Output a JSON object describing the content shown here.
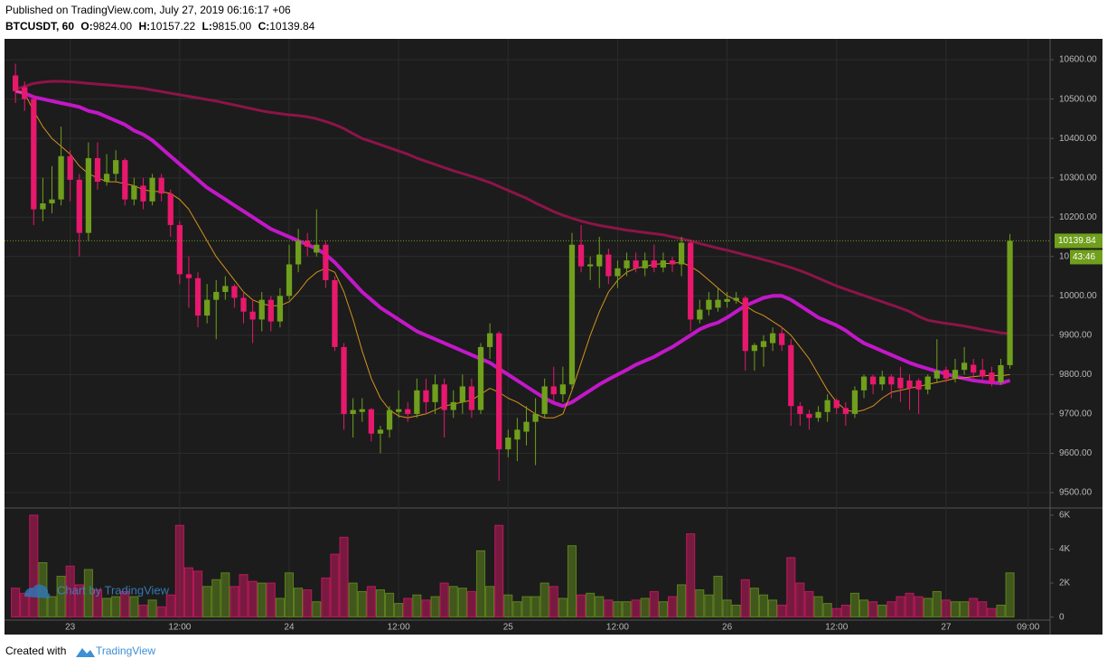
{
  "chart_data": {
    "type": "candlestick",
    "header": {
      "published": "Published on TradingView.com, July 27, 2019 06:16:17 +06",
      "symbol": "BTCUSDT, 60",
      "ohlc": [
        {
          "label": "O:",
          "value": "9824.00"
        },
        {
          "label": "H:",
          "value": "10157.22"
        },
        {
          "label": "L:",
          "value": "9815.00"
        },
        {
          "label": "C:",
          "value": "10139.84"
        }
      ]
    },
    "last_price_label": "10139.84",
    "countdown": "43:46",
    "watermark": "Chart by TradingView",
    "footer": {
      "created": "Created with",
      "brand": "TradingView"
    },
    "up_color": "#6f9f1c",
    "down_color": "#e8186d",
    "open": [
      10560,
      10530,
      10500,
      10220,
      10235,
      10245,
      10355,
      10295,
      10160,
      10350,
      10290,
      10310,
      10345,
      10245,
      10280,
      10240,
      10300,
      10260,
      10180,
      10055,
      10045,
      9950,
      9990,
      10010,
      10025,
      9995,
      9960,
      9940,
      9990,
      9935,
      10000,
      10080,
      10140,
      10110,
      10130,
      10040,
      9870,
      9700,
      9705,
      9712,
      9650,
      9660,
      9705,
      9712,
      9700,
      9760,
      9730,
      9775,
      9710,
      9730,
      9770,
      9710,
      9870,
      9905,
      9610,
      9635,
      9655,
      9680,
      9700,
      9770,
      9750,
      9775,
      10130,
      10075,
      10075,
      10105,
      10050,
      10070,
      10090,
      10070,
      10090,
      10072,
      10090,
      10080,
      10135,
      9940,
      9965,
      9970,
      9985,
      9988,
      9995,
      9860,
      9870,
      9880,
      9905,
      9875,
      9720,
      9700,
      9690,
      9705,
      9735,
      9715,
      9700,
      9760,
      9795,
      9775,
      9795,
      9792,
      9785,
      9785,
      9762,
      9790,
      9812,
      9790,
      9812,
      9825,
      9812,
      9805,
      9780,
      9824
    ],
    "high": [
      10590,
      10545,
      10510,
      10300,
      10330,
      10430,
      10370,
      10310,
      10390,
      10390,
      10360,
      10370,
      10350,
      10300,
      10300,
      10310,
      10310,
      10270,
      10190,
      10100,
      10060,
      10030,
      10040,
      10050,
      10030,
      10010,
      9990,
      10010,
      10000,
      10020,
      10130,
      10170,
      10160,
      10220,
      10140,
      10050,
      9880,
      9740,
      9740,
      9715,
      9670,
      9720,
      9760,
      9730,
      9790,
      9790,
      9800,
      9790,
      9760,
      9800,
      9790,
      9880,
      9930,
      9910,
      9660,
      9690,
      9720,
      9740,
      9790,
      9820,
      9820,
      10160,
      10180,
      10100,
      10150,
      10120,
      10090,
      10110,
      10110,
      10110,
      10130,
      10110,
      10100,
      10150,
      10140,
      9990,
      10010,
      10020,
      10010,
      10010,
      10000,
      9880,
      9900,
      9920,
      9920,
      9890,
      9730,
      9710,
      9720,
      9750,
      9740,
      9730,
      9770,
      9800,
      9800,
      9810,
      9800,
      9820,
      9800,
      9790,
      9800,
      9890,
      9820,
      9840,
      9870,
      9840,
      9840,
      9820,
      9840,
      10157.22
    ],
    "low": [
      10490,
      10470,
      10180,
      10190,
      10210,
      10230,
      10240,
      10100,
      10140,
      10270,
      10280,
      10290,
      10230,
      10230,
      10220,
      10230,
      10240,
      10150,
      10030,
      9970,
      9920,
      9930,
      9890,
      9990,
      9970,
      9930,
      9880,
      9910,
      9910,
      9920,
      9990,
      10060,
      10100,
      10100,
      10020,
      9860,
      9660,
      9640,
      9680,
      9630,
      9600,
      9640,
      9690,
      9680,
      9690,
      9700,
      9700,
      9640,
      9690,
      9700,
      9690,
      9700,
      9840,
      9530,
      9590,
      9580,
      9620,
      9570,
      9690,
      9730,
      9730,
      9760,
      10060,
      10040,
      10020,
      10030,
      10020,
      10050,
      10060,
      10050,
      10060,
      10060,
      10060,
      10050,
      9910,
      9930,
      9950,
      9960,
      9970,
      9980,
      9810,
      9810,
      9820,
      9860,
      9860,
      9670,
      9670,
      9660,
      9680,
      9680,
      9700,
      9670,
      9690,
      9740,
      9750,
      9760,
      9740,
      9730,
      9710,
      9700,
      9750,
      9780,
      9780,
      9780,
      9800,
      9790,
      9780,
      9770,
      9775,
      9815
    ],
    "close": [
      10520,
      10500,
      10220,
      10235,
      10245,
      10355,
      10295,
      10160,
      10350,
      10290,
      10310,
      10345,
      10245,
      10280,
      10240,
      10300,
      10260,
      10180,
      10055,
      10045,
      9950,
      9990,
      10010,
      10025,
      9995,
      9960,
      9940,
      9990,
      9935,
      10000,
      10080,
      10140,
      10125,
      10130,
      10040,
      9870,
      9700,
      9710,
      9712,
      9650,
      9660,
      9710,
      9712,
      9700,
      9760,
      9730,
      9775,
      9710,
      9730,
      9770,
      9710,
      9870,
      9905,
      9610,
      9640,
      9660,
      9680,
      9700,
      9770,
      9750,
      9775,
      10130,
      10075,
      10080,
      10105,
      10050,
      10070,
      10090,
      10070,
      10090,
      10072,
      10090,
      10080,
      10135,
      9940,
      9965,
      9990,
      9990,
      9992,
      9995,
      9860,
      9875,
      9885,
      9905,
      9875,
      9720,
      9700,
      9690,
      9705,
      9735,
      9715,
      9700,
      9760,
      9795,
      9775,
      9795,
      9775,
      9765,
      9765,
      9762,
      9795,
      9810,
      9790,
      9812,
      9830,
      9805,
      9795,
      9780,
      9824,
      10139.84
    ],
    "volume": [
      1700,
      1400,
      6000,
      3200,
      1200,
      2400,
      3000,
      1900,
      2800,
      1600,
      1100,
      1200,
      1500,
      1200,
      700,
      1000,
      600,
      1300,
      5400,
      2900,
      2700,
      1800,
      2200,
      2600,
      1800,
      2500,
      2100,
      2000,
      2000,
      1100,
      2600,
      1700,
      1600,
      900,
      2300,
      3700,
      4700,
      2000,
      1500,
      1800,
      1600,
      1400,
      800,
      1100,
      1300,
      1000,
      1200,
      2000,
      1800,
      1700,
      1500,
      3900,
      1800,
      5400,
      1300,
      900,
      1200,
      1200,
      2000,
      1800,
      1100,
      4200,
      1300,
      1400,
      1200,
      1000,
      900,
      900,
      1000,
      1100,
      1500,
      900,
      1200,
      1900,
      4900,
      1600,
      1300,
      2400,
      1000,
      700,
      2200,
      1700,
      1300,
      1000,
      700,
      3500,
      2000,
      1500,
      1200,
      800,
      500,
      700,
      1400,
      1000,
      900,
      700,
      900,
      1200,
      1400,
      1200,
      1100,
      1500,
      1000,
      900,
      900,
      1100,
      900,
      500,
      700,
      2600
    ],
    "lines": [
      {
        "color": "#8c1449",
        "width": 3,
        "values": [
          10525,
          10532,
          10540,
          10543,
          10545,
          10545,
          10544,
          10542,
          10540,
          10538,
          10536,
          10534,
          10532,
          10530,
          10527,
          10523,
          10519,
          10515,
          10511,
          10507,
          10503,
          10499,
          10495,
          10490,
          10485,
          10480,
          10475,
          10470,
          10466,
          10463,
          10460,
          10458,
          10455,
          10450,
          10443,
          10435,
          10425,
          10412,
          10400,
          10392,
          10384,
          10376,
          10368,
          10360,
          10350,
          10342,
          10334,
          10326,
          10318,
          10311,
          10304,
          10296,
          10288,
          10278,
          10268,
          10258,
          10248,
          10236,
          10225,
          10214,
          10205,
          10197,
          10190,
          10184,
          10179,
          10175,
          10171,
          10167,
          10164,
          10161,
          10158,
          10155,
          10150,
          10145,
          10140,
          10133,
          10127,
          10121,
          10116,
          10110,
          10104,
          10098,
          10092,
          10086,
          10079,
          10072,
          10064,
          10055,
          10045,
          10035,
          10025,
          10017,
          10009,
          10001,
          9993,
          9985,
          9977,
          9969,
          9960,
          9948,
          9938,
          9934,
          9930,
          9927,
          9923,
          9919,
          9914,
          9910,
          9906,
          9904
        ]
      },
      {
        "color": "#c218c8",
        "width": 4,
        "values": [
          10520,
          10515,
          10505,
          10500,
          10495,
          10490,
          10485,
          10480,
          10470,
          10465,
          10455,
          10445,
          10435,
          10420,
          10410,
          10395,
          10375,
          10355,
          10335,
          10315,
          10295,
          10275,
          10260,
          10245,
          10230,
          10215,
          10200,
          10185,
          10170,
          10160,
          10150,
          10140,
          10130,
          10120,
          10105,
          10085,
          10060,
          10035,
          10010,
          9990,
          9970,
          9955,
          9940,
          9925,
          9910,
          9900,
          9890,
          9880,
          9870,
          9860,
          9850,
          9840,
          9830,
          9815,
          9800,
          9785,
          9770,
          9755,
          9740,
          9728,
          9720,
          9730,
          9745,
          9760,
          9775,
          9788,
          9800,
          9812,
          9825,
          9835,
          9845,
          9858,
          9870,
          9885,
          9900,
          9915,
          9925,
          9932,
          9945,
          9960,
          9975,
          9985,
          9995,
          10000,
          10000,
          9990,
          9975,
          9960,
          9945,
          9935,
          9925,
          9912,
          9895,
          9880,
          9870,
          9860,
          9850,
          9840,
          9830,
          9822,
          9815,
          9808,
          9802,
          9795,
          9790,
          9785,
          9782,
          9780,
          9778,
          9785
        ]
      },
      {
        "color": "#d4921c",
        "width": 1,
        "values": [
          10520,
          10515,
          10470,
          10430,
          10400,
          10380,
          10360,
          10330,
          10310,
          10300,
          10290,
          10290,
          10285,
          10280,
          10270,
          10265,
          10265,
          10260,
          10245,
          10220,
          10180,
          10140,
          10100,
          10070,
          10040,
          10010,
          9990,
          9980,
          9975,
          9975,
          9985,
          10010,
          10040,
          10060,
          10070,
          10060,
          10010,
          9940,
          9860,
          9790,
          9740,
          9710,
          9695,
          9690,
          9695,
          9700,
          9710,
          9720,
          9725,
          9730,
          9735,
          9750,
          9765,
          9755,
          9740,
          9730,
          9715,
          9700,
          9690,
          9690,
          9700,
          9760,
          9830,
          9900,
          9960,
          10010,
          10040,
          10060,
          10070,
          10075,
          10080,
          10082,
          10083,
          10085,
          10075,
          10060,
          10040,
          10020,
          10000,
          9990,
          9975,
          9960,
          9950,
          9935,
          9920,
          9900,
          9870,
          9840,
          9800,
          9760,
          9730,
          9710,
          9705,
          9710,
          9720,
          9740,
          9755,
          9760,
          9765,
          9770,
          9775,
          9780,
          9785,
          9790,
          9792,
          9795,
          9797,
          9798,
          9797,
          9800
        ]
      }
    ],
    "xlim": [
      -1.2,
      113.4
    ],
    "xticks": [
      {
        "value": 6,
        "label": "23"
      },
      {
        "value": 18,
        "label": "12:00"
      },
      {
        "value": 30,
        "label": "24"
      },
      {
        "value": 42,
        "label": "12:00"
      },
      {
        "value": 54,
        "label": "25"
      },
      {
        "value": 66,
        "label": "12:00"
      },
      {
        "value": 78,
        "label": "26"
      },
      {
        "value": 90,
        "label": "12:00"
      },
      {
        "value": 102,
        "label": "27"
      },
      {
        "value": 111,
        "label": "09:00"
      }
    ],
    "ylim": [
      9461,
      10653
    ],
    "yticks": [
      {
        "value": 9500,
        "label": "9500.00"
      },
      {
        "value": 9600,
        "label": "9600.00"
      },
      {
        "value": 9700,
        "label": "9700.00"
      },
      {
        "value": 9800,
        "label": "9800.00"
      },
      {
        "value": 9900,
        "label": "9900.00"
      },
      {
        "value": 10000,
        "label": "10000.00"
      },
      {
        "value": 10100,
        "label": "10100.00"
      },
      {
        "value": 10200,
        "label": "10200.00"
      },
      {
        "value": 10300,
        "label": "10300.00"
      },
      {
        "value": 10400,
        "label": "10400.00"
      },
      {
        "value": 10500,
        "label": "10500.00"
      },
      {
        "value": 10600,
        "label": "10600.00"
      }
    ],
    "vlim": [
      -180,
      6420
    ],
    "vticks": [
      0,
      {
        "value": 2000,
        "label": "2K"
      },
      {
        "value": 4000,
        "label": "4K"
      },
      {
        "value": 6000,
        "label": "6K"
      }
    ],
    "grid": true
  }
}
